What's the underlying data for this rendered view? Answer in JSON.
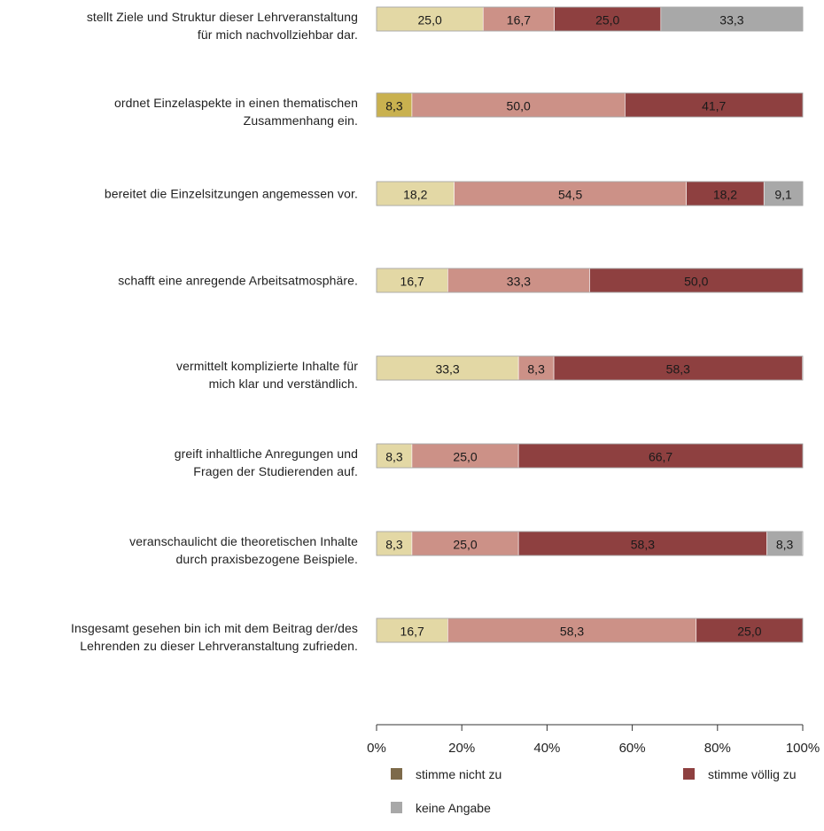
{
  "chart_data": {
    "type": "bar",
    "orientation": "horizontal",
    "stacked": true,
    "xlim": [
      0,
      100
    ],
    "x_ticks": [
      "0%",
      "20%",
      "40%",
      "60%",
      "80%",
      "100%"
    ],
    "categories": [
      [
        "stellt Ziele und Struktur dieser Lehrveranstaltung",
        "für mich nachvollziehbar dar."
      ],
      [
        "ordnet Einzelaspekte in einen thematischen",
        "Zusammenhang ein."
      ],
      [
        "bereitet die Einzelsitzungen angemessen vor."
      ],
      [
        "schafft eine anregende Arbeitsatmosphäre."
      ],
      [
        "vermittelt komplizierte Inhalte für",
        "mich klar und verständlich."
      ],
      [
        "greift inhaltliche Anregungen und",
        "Fragen der Studierenden auf."
      ],
      [
        "veranschaulicht die theoretischen Inhalte",
        "durch praxisbezogene Beispiele."
      ],
      [
        "Insgesamt gesehen bin ich mit dem Beitrag der/des",
        "Lehrenden zu dieser Lehrveranstaltung zufrieden."
      ]
    ],
    "series": [
      {
        "key": "s1",
        "name": "stimme nicht zu",
        "color": "#7d6a4a",
        "values": [
          0,
          0,
          0,
          0,
          0,
          0,
          0,
          0
        ]
      },
      {
        "key": "s2",
        "name": "",
        "color": "#c9b14f",
        "values": [
          0,
          8.3,
          0,
          0,
          0,
          0,
          0,
          0
        ]
      },
      {
        "key": "s3",
        "name": "",
        "color": "#e3d8a5",
        "values": [
          25.0,
          0,
          18.2,
          16.7,
          33.3,
          8.3,
          8.3,
          16.7
        ]
      },
      {
        "key": "s4",
        "name": "",
        "color": "#cc9187",
        "values": [
          16.7,
          50.0,
          54.5,
          33.3,
          8.3,
          25.0,
          25.0,
          58.3
        ]
      },
      {
        "key": "s5",
        "name": "stimme völlig zu",
        "color": "#8e4040",
        "values": [
          25.0,
          41.7,
          18.2,
          50.0,
          58.3,
          66.7,
          58.3,
          25.0
        ]
      },
      {
        "key": "s6",
        "name": "keine Angabe",
        "color": "#a8a8a8",
        "values": [
          33.3,
          0,
          9.1,
          0,
          0,
          0,
          8.3,
          0
        ]
      }
    ],
    "value_labels": [
      [
        "",
        "",
        "25,0",
        "16,7",
        "25,0",
        "33,3"
      ],
      [
        "",
        "8,3",
        "",
        "50,0",
        "41,7",
        ""
      ],
      [
        "",
        "",
        "18,2",
        "54,5",
        "18,2",
        "9,1"
      ],
      [
        "",
        "",
        "16,7",
        "33,3",
        "50,0",
        ""
      ],
      [
        "",
        "",
        "33,3",
        "8,3",
        "58,3",
        ""
      ],
      [
        "",
        "",
        "8,3",
        "25,0",
        "66,7",
        ""
      ],
      [
        "",
        "",
        "8,3",
        "25,0",
        "58,3",
        "8,3"
      ],
      [
        "",
        "",
        "16,7",
        "58,3",
        "25,0",
        ""
      ]
    ],
    "legend": [
      {
        "label": "stimme nicht zu",
        "color": "#7d6a4a"
      },
      {
        "label": "stimme völlig zu",
        "color": "#8e4040"
      },
      {
        "label": "keine Angabe",
        "color": "#a8a8a8"
      }
    ],
    "legend_position": "bottom"
  }
}
